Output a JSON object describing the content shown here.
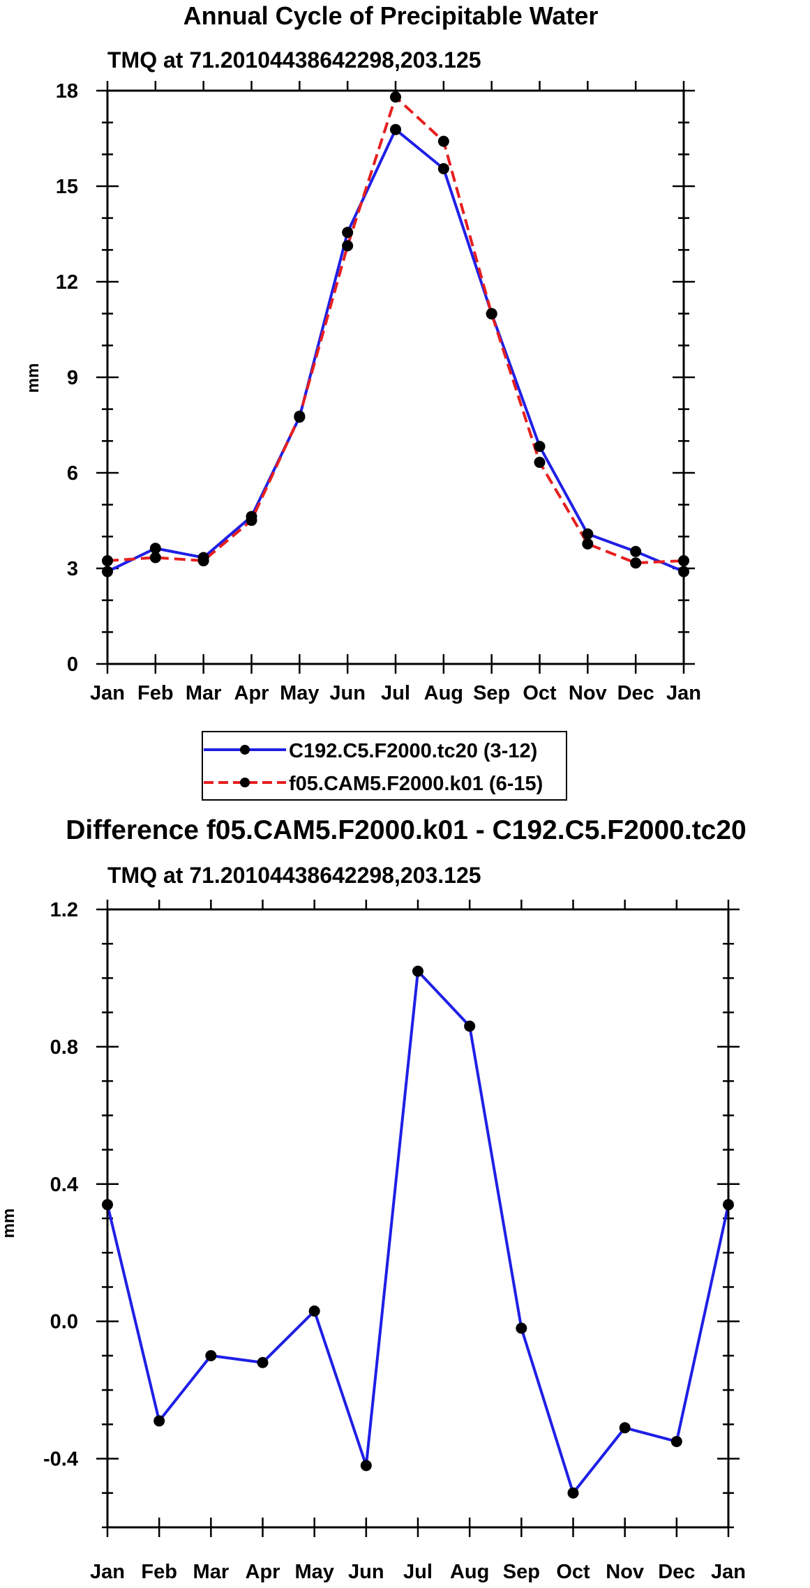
{
  "chart_data": [
    {
      "type": "line",
      "title": "Annual Cycle of Precipitable Water",
      "subtitle": "TMQ at 71.20104438642298,203.125",
      "xlabel": "",
      "ylabel": "mm",
      "categories": [
        "Jan",
        "Feb",
        "Mar",
        "Apr",
        "May",
        "Jun",
        "Jul",
        "Aug",
        "Sep",
        "Oct",
        "Nov",
        "Dec",
        "Jan"
      ],
      "ylim": [
        0,
        18
      ],
      "yticks": [
        0,
        3,
        6,
        9,
        12,
        15,
        18
      ],
      "ytick_labels": [
        "0",
        "3",
        "6",
        "9",
        "12",
        "15",
        "18"
      ],
      "series": [
        {
          "name": "C192.C5.F2000.tc20 (3-12)",
          "color": "#1f1fe6",
          "style": "solid",
          "values": [
            2.9,
            3.63,
            3.34,
            4.63,
            7.75,
            13.55,
            16.78,
            15.55,
            11.0,
            6.83,
            4.08,
            3.53,
            2.9
          ]
        },
        {
          "name": "f05.CAM5.F2000.k01 (6-15)",
          "color": "#e61f1f",
          "style": "dashed",
          "values": [
            3.24,
            3.34,
            3.24,
            4.51,
            7.78,
            13.13,
            17.8,
            16.41,
            10.99,
            6.33,
            3.77,
            3.17,
            3.24
          ]
        }
      ],
      "legend": {
        "placement": "bottom-center",
        "entries": [
          "C192.C5.F2000.tc20 (3-12)",
          "f05.CAM5.F2000.k01 (6-15)"
        ]
      }
    },
    {
      "type": "line",
      "title": "Difference f05.CAM5.F2000.k01 - C192.C5.F2000.tc20",
      "subtitle": "TMQ at 71.20104438642298,203.125",
      "xlabel": "",
      "ylabel": "mm",
      "categories": [
        "Jan",
        "Feb",
        "Mar",
        "Apr",
        "May",
        "Jun",
        "Jul",
        "Aug",
        "Sep",
        "Oct",
        "Nov",
        "Dec",
        "Jan"
      ],
      "ylim": [
        -0.6,
        1.2
      ],
      "yticks": [
        -0.4,
        0.0,
        0.4,
        0.8,
        1.2
      ],
      "ytick_labels": [
        "-0.4",
        "0.0",
        "0.4",
        "0.8",
        "1.2"
      ],
      "series": [
        {
          "name": "Difference",
          "color": "#1f1fe6",
          "style": "solid",
          "values": [
            0.34,
            -0.29,
            -0.1,
            -0.12,
            0.03,
            -0.42,
            1.02,
            0.86,
            -0.02,
            -0.5,
            -0.31,
            -0.35,
            0.34
          ]
        }
      ]
    }
  ]
}
